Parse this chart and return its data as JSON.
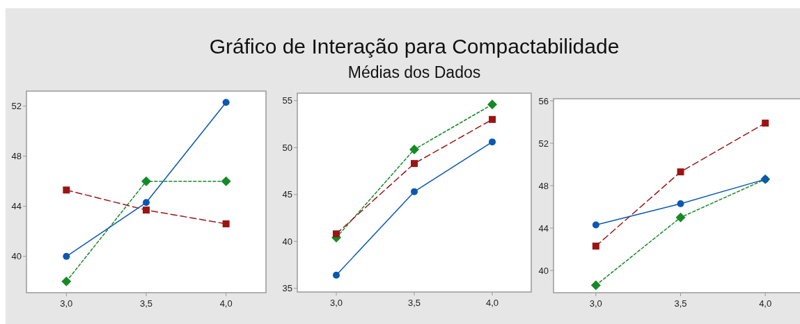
{
  "chart_data": [
    {
      "type": "line",
      "categories": [
        "3,0",
        "3,5",
        "4,0"
      ],
      "ylim": [
        37.1,
        53.2
      ],
      "yticks": [
        40,
        44,
        48,
        52
      ],
      "grid": false,
      "series": [
        {
          "color": "#0a58b0",
          "values": [
            40.0,
            44.3,
            52.3
          ],
          "marker": "circle",
          "line_style": "solid"
        },
        {
          "color": "#9b1414",
          "values": [
            45.3,
            43.7,
            42.6
          ],
          "marker": "square",
          "line_style": "dashed"
        },
        {
          "color": "#168a26",
          "values": [
            38.0,
            46.0,
            46.0
          ],
          "marker": "diamond",
          "line_style": "dotted"
        }
      ]
    },
    {
      "type": "line",
      "title": "Gráfico de Interação para Compactabilidade",
      "subtitle": "Médias dos Dados",
      "categories": [
        "3,0",
        "3,5",
        "4,0"
      ],
      "ylim": [
        34.6,
        55.8
      ],
      "yticks": [
        35,
        40,
        45,
        50,
        55
      ],
      "grid": false,
      "series": [
        {
          "color": "#0a58b0",
          "values": [
            36.4,
            45.3,
            50.6
          ],
          "marker": "circle",
          "line_style": "solid"
        },
        {
          "color": "#9b1414",
          "values": [
            40.8,
            48.3,
            53.0
          ],
          "marker": "square",
          "line_style": "dashed"
        },
        {
          "color": "#168a26",
          "values": [
            40.4,
            49.8,
            54.6
          ],
          "marker": "diamond",
          "line_style": "dotted"
        }
      ]
    },
    {
      "type": "line",
      "categories": [
        "3,0",
        "3,5",
        "4,0"
      ],
      "ylim": [
        37.9,
        56.2
      ],
      "yticks": [
        40,
        44,
        48,
        52,
        56
      ],
      "grid": false,
      "series": [
        {
          "color": "#0a58b0",
          "values": [
            44.3,
            46.3,
            48.6
          ],
          "marker": "circle",
          "line_style": "solid"
        },
        {
          "color": "#9b1414",
          "values": [
            42.3,
            49.3,
            53.9
          ],
          "marker": "square",
          "line_style": "dashed"
        },
        {
          "color": "#168a26",
          "values": [
            38.6,
            45.0,
            48.6
          ],
          "marker": "diamond",
          "line_style": "dotted"
        }
      ]
    }
  ]
}
